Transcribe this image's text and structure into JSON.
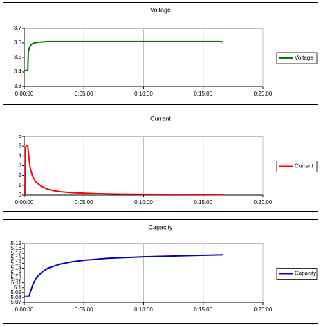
{
  "chart_data": [
    {
      "type": "line",
      "title": "Voltage",
      "x": [
        0,
        0.3,
        0.32,
        0.35,
        0.45,
        0.6,
        0.8,
        1.2,
        2,
        5,
        10,
        16.5,
        16.7
      ],
      "series": [
        {
          "name": "Voltage",
          "color": "#008000",
          "values": [
            3.41,
            3.41,
            3.47,
            3.54,
            3.57,
            3.59,
            3.6,
            3.605,
            3.61,
            3.61,
            3.61,
            3.61,
            3.605
          ]
        }
      ],
      "xlim": [
        0,
        20
      ],
      "xticks": [
        {
          "value": 0,
          "label": "0:00:00"
        },
        {
          "value": 5,
          "label": "0:05:00"
        },
        {
          "value": 10,
          "label": "0:10:00"
        },
        {
          "value": 15,
          "label": "0:15:00"
        },
        {
          "value": 20,
          "label": "0:20:00"
        }
      ],
      "ylim": [
        3.3,
        3.7
      ],
      "yticks": [
        3.3,
        3.4,
        3.5,
        3.6,
        3.7
      ],
      "grid": true,
      "legend": "right"
    },
    {
      "type": "line",
      "title": "Current",
      "x": [
        0,
        0.1,
        0.12,
        0.2,
        0.3,
        0.4,
        0.5,
        0.7,
        1,
        1.5,
        2,
        2.5,
        3,
        4,
        5,
        6,
        8,
        10,
        12,
        15,
        16.7
      ],
      "series": [
        {
          "name": "Current",
          "color": "#ff0000",
          "values": [
            0,
            0,
            4.9,
            5.0,
            5.0,
            3.8,
            2.8,
            1.9,
            1.3,
            0.85,
            0.6,
            0.45,
            0.35,
            0.25,
            0.2,
            0.15,
            0.1,
            0.08,
            0.07,
            0.06,
            0.05
          ]
        }
      ],
      "xlim": [
        0,
        20
      ],
      "xticks": [
        {
          "value": 0,
          "label": "0:00:00"
        },
        {
          "value": 5,
          "label": "0:05:00"
        },
        {
          "value": 10,
          "label": "0:10:00"
        },
        {
          "value": 15,
          "label": "0:15:00"
        },
        {
          "value": 20,
          "label": "0:20:00"
        }
      ],
      "ylim": [
        0,
        6
      ],
      "yticks": [
        0,
        1,
        2,
        3,
        4,
        5,
        6
      ],
      "grid": true,
      "legend": "right"
    },
    {
      "type": "line",
      "title": "Capacity",
      "x": [
        0,
        0.4,
        0.5,
        0.7,
        1,
        1.5,
        2,
        3,
        4,
        5,
        7,
        10,
        13,
        16.7
      ],
      "series": [
        {
          "name": "Capacity",
          "color": "#0000cc",
          "values": [
            5.083,
            5.083,
            5.09,
            5.105,
            5.12,
            5.132,
            5.14,
            5.148,
            5.153,
            5.156,
            5.16,
            5.163,
            5.165,
            5.167
          ]
        }
      ],
      "xlim": [
        0,
        20
      ],
      "xticks": [
        {
          "value": 0,
          "label": "0:00:00"
        },
        {
          "value": 5,
          "label": "0:05:00"
        },
        {
          "value": 10,
          "label": "0:10:00"
        },
        {
          "value": 15,
          "label": "0:15:00"
        },
        {
          "value": 20,
          "label": "0:20:00"
        }
      ],
      "ylim": [
        5.07,
        5.19
      ],
      "yticks": [
        5.07,
        5.08,
        5.09,
        5.1,
        5.11,
        5.12,
        5.13,
        5.14,
        5.15,
        5.16,
        5.17,
        5.18,
        5.19
      ],
      "grid": true,
      "legend": "right"
    }
  ]
}
